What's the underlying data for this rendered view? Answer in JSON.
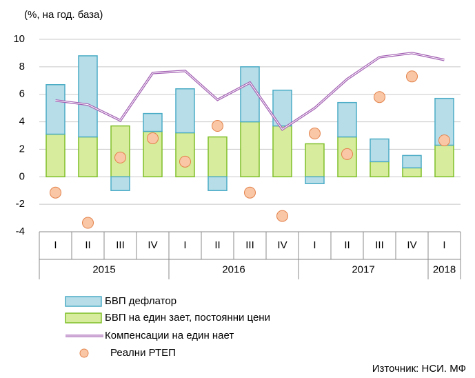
{
  "chart_data": {
    "type": "bar",
    "title": "(%, на год. база)",
    "source": "Източник: НСИ. МФ",
    "categories": [
      "I",
      "II",
      "III",
      "IV",
      "I",
      "II",
      "III",
      "IV",
      "I",
      "II",
      "III",
      "IV",
      "I"
    ],
    "year_groups": [
      {
        "label": "2015",
        "count": 4
      },
      {
        "label": "2016",
        "count": 4
      },
      {
        "label": "2017",
        "count": 4
      },
      {
        "label": "2018",
        "count": 1
      }
    ],
    "ylim": [
      -4,
      10
    ],
    "yticks": [
      -4,
      -2,
      0,
      2,
      4,
      6,
      8,
      10
    ],
    "grid": true,
    "series": [
      {
        "name": "БВП дефлатор",
        "type": "bar",
        "color": "#b7dee8",
        "border": "#4bacc6",
        "values": [
          3.6,
          5.9,
          -1.0,
          1.3,
          3.2,
          -1.0,
          4.0,
          2.6,
          -0.5,
          2.5,
          1.65,
          0.9,
          3.4
        ]
      },
      {
        "name": "БВП на един заeт, постоянни цени",
        "type": "bar",
        "color": "#d7ec9c",
        "border": "#7fbf2a",
        "values": [
          3.1,
          2.9,
          3.7,
          3.3,
          3.2,
          2.9,
          4.0,
          3.7,
          2.4,
          2.9,
          1.1,
          0.65,
          2.3
        ]
      },
      {
        "name": "Компенсации на един нает",
        "type": "line",
        "color": "#a462b4",
        "values": [
          5.55,
          5.25,
          4.1,
          7.55,
          7.7,
          5.6,
          6.85,
          3.45,
          5.0,
          7.1,
          8.7,
          9.0,
          8.5
        ]
      },
      {
        "name": "Реални РТЕП",
        "type": "scatter",
        "color": "#f9c6a6",
        "border": "#e3824a",
        "values": [
          -1.15,
          -3.35,
          1.4,
          2.8,
          1.1,
          3.7,
          -1.15,
          -2.85,
          3.15,
          1.65,
          5.8,
          7.3,
          2.65
        ]
      }
    ]
  }
}
